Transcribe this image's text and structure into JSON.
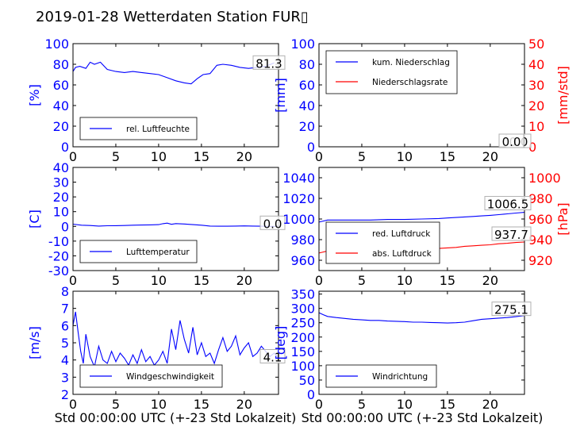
{
  "title": "2019-01-28 Wetterdaten Station FUR▯",
  "colors": {
    "primary": "#0000ff",
    "secondary": "#ff0000",
    "axis": "#000000"
  },
  "xlabel": "Std 00:00:00 UTC (+-23 Std Lokalzeit)",
  "chart_data": [
    {
      "type": "line",
      "id": "humidity",
      "xlim": [
        0,
        24
      ],
      "xticks": [
        0,
        5,
        10,
        15,
        20
      ],
      "ylim": [
        0,
        100
      ],
      "yticks": [
        0,
        20,
        40,
        60,
        80,
        100
      ],
      "ylabel": "[%]",
      "legend": "lower-left",
      "last_value": "81.3",
      "series": [
        {
          "name": "rel. Luftfeuchte",
          "axis": "left",
          "color": "#0000ff",
          "x": [
            0,
            0.3,
            0.8,
            1.5,
            2,
            2.5,
            3.2,
            4,
            5,
            6,
            7,
            8,
            9,
            10,
            11,
            12,
            13,
            13.8,
            14.5,
            15.2,
            16,
            16.8,
            17.5,
            18.5,
            19.5,
            20.5,
            21.5,
            22.5,
            23.5
          ],
          "y": [
            73,
            77,
            78,
            76,
            82,
            80,
            82,
            75,
            73,
            72,
            73,
            72,
            71,
            70,
            67,
            64,
            62,
            61,
            66,
            70,
            71,
            79,
            80,
            79,
            77,
            76,
            77,
            78,
            81.3
          ]
        }
      ]
    },
    {
      "type": "line",
      "id": "precip",
      "xlim": [
        0,
        24
      ],
      "xticks": [
        0,
        5,
        10,
        15,
        20
      ],
      "ylim": [
        0,
        100
      ],
      "yticks": [
        0,
        20,
        40,
        60,
        80,
        100
      ],
      "ylabel": "[mm]",
      "y2lim": [
        0,
        50
      ],
      "y2ticks": [
        0,
        10,
        20,
        30,
        40,
        50
      ],
      "y2label": "[mm/std]",
      "legend": "upper-left",
      "last_value": "0.0",
      "last_value2": "0.0",
      "series": [
        {
          "name": "kum. Niederschlag",
          "axis": "left",
          "color": "#0000ff",
          "x": [
            0,
            24
          ],
          "y": [
            0,
            0
          ]
        },
        {
          "name": "Niederschlagsrate",
          "axis": "right",
          "color": "#ff0000",
          "x": [
            0,
            24
          ],
          "y": [
            0,
            0
          ]
        }
      ]
    },
    {
      "type": "line",
      "id": "temperature",
      "xlim": [
        0,
        24
      ],
      "xticks": [
        0,
        5,
        10,
        15,
        20
      ],
      "ylim": [
        -30,
        40
      ],
      "yticks": [
        -30,
        -20,
        -10,
        0,
        10,
        20,
        30,
        40
      ],
      "ylabel": "[C]",
      "legend": "lower-left",
      "last_value": "0.0",
      "series": [
        {
          "name": "Lufttemperatur",
          "axis": "left",
          "color": "#0000ff",
          "x": [
            0,
            1,
            2,
            3,
            4,
            5,
            6,
            7,
            8,
            9,
            10,
            10.5,
            11,
            11.5,
            12,
            13,
            14,
            15,
            16,
            17,
            18,
            19,
            20,
            21,
            22,
            23,
            24
          ],
          "y": [
            1.5,
            0.8,
            0.6,
            0.2,
            0.4,
            0.5,
            0.6,
            0.8,
            0.9,
            1.0,
            1.2,
            1.8,
            2.2,
            1.4,
            1.9,
            1.6,
            1.2,
            0.8,
            0.2,
            0.1,
            0.1,
            0.2,
            0.3,
            0.2,
            0.1,
            0.0,
            0.0
          ]
        }
      ]
    },
    {
      "type": "line",
      "id": "pressure",
      "xlim": [
        0,
        24
      ],
      "xticks": [
        0,
        5,
        10,
        15,
        20
      ],
      "ylim": [
        950,
        1050
      ],
      "yticks": [
        960,
        980,
        1000,
        1020,
        1040
      ],
      "ylabel": "",
      "y2lim": [
        910,
        1010
      ],
      "y2ticks": [
        920,
        940,
        960,
        980,
        1000
      ],
      "y2label": "[hPa]",
      "legend": "lower-left",
      "last_value": "1006.5",
      "last_value2": "937.7",
      "series": [
        {
          "name": "red. Luftdruck",
          "axis": "left",
          "color": "#0000ff",
          "x": [
            0,
            1,
            2,
            4,
            6,
            8,
            10,
            12,
            14,
            15,
            16,
            17,
            18,
            19,
            20,
            21,
            22,
            23,
            24
          ],
          "y": [
            997,
            999,
            999,
            999,
            999,
            999.5,
            999.5,
            1000,
            1000.5,
            1001,
            1001.5,
            1002,
            1002.5,
            1003,
            1003.5,
            1004.2,
            1005,
            1005.8,
            1006.5
          ]
        },
        {
          "name": "abs. Luftdruck",
          "axis": "right",
          "color": "#ff0000",
          "x": [
            0,
            1,
            2,
            4,
            6,
            8,
            10,
            12,
            14,
            15,
            16,
            17,
            18,
            19,
            20,
            21,
            22,
            23,
            24
          ],
          "y": [
            927,
            929,
            929,
            929.5,
            930,
            930,
            930.5,
            931,
            931.5,
            932,
            932.5,
            933.5,
            934,
            934.5,
            935,
            936,
            936.5,
            937.2,
            937.7
          ]
        }
      ]
    },
    {
      "type": "line",
      "id": "windspeed",
      "xlim": [
        0,
        24
      ],
      "xticks": [
        0,
        5,
        10,
        15,
        20
      ],
      "ylim": [
        2,
        8
      ],
      "yticks": [
        2,
        3,
        4,
        5,
        6,
        7,
        8
      ],
      "ylabel": "[m/s]",
      "legend": "lower-left",
      "last_value": "4.1",
      "series": [
        {
          "name": "Windgeschwindigkeit",
          "axis": "left",
          "color": "#0000ff",
          "x": [
            0,
            0.3,
            0.6,
            0.9,
            1.2,
            1.5,
            2,
            2.5,
            3,
            3.5,
            4,
            4.5,
            5,
            5.5,
            6,
            6.5,
            7,
            7.5,
            8,
            8.5,
            9,
            9.5,
            10,
            10.5,
            11,
            11.5,
            12,
            12.5,
            13,
            13.5,
            14,
            14.5,
            15,
            15.5,
            16,
            16.5,
            17,
            17.5,
            18,
            18.5,
            19,
            19.5,
            20,
            20.5,
            21,
            21.5,
            22,
            22.5,
            23,
            23.5,
            24
          ],
          "y": [
            6.0,
            6.8,
            5.6,
            4.5,
            3.8,
            5.5,
            4.2,
            3.6,
            4.8,
            4.0,
            3.8,
            4.5,
            3.9,
            4.4,
            4.1,
            3.7,
            4.3,
            3.8,
            4.6,
            3.9,
            4.2,
            3.7,
            4.0,
            4.5,
            3.8,
            5.8,
            4.6,
            6.3,
            5.2,
            4.4,
            5.9,
            4.3,
            5.0,
            4.2,
            4.4,
            3.8,
            4.6,
            5.3,
            4.5,
            4.8,
            5.4,
            4.3,
            4.7,
            5.0,
            4.2,
            4.4,
            4.8,
            4.5,
            4.2,
            4.4,
            4.1
          ]
        }
      ]
    },
    {
      "type": "line",
      "id": "winddir",
      "xlim": [
        0,
        24
      ],
      "xticks": [
        0,
        5,
        10,
        15,
        20
      ],
      "ylim": [
        0,
        360
      ],
      "yticks": [
        0,
        50,
        100,
        150,
        200,
        250,
        300,
        350
      ],
      "ylabel": "[deg]",
      "legend": "lower-left",
      "last_value": "275.1",
      "series": [
        {
          "name": "Windrichtung",
          "axis": "left",
          "color": "#0000ff",
          "x": [
            0,
            0.5,
            1,
            2,
            3,
            4,
            5,
            6,
            7,
            8,
            9,
            10,
            11,
            12,
            13,
            14,
            15,
            16,
            17,
            18,
            19,
            20,
            21,
            22,
            23,
            24
          ],
          "y": [
            285,
            278,
            272,
            268,
            265,
            262,
            260,
            258,
            258,
            256,
            255,
            254,
            252,
            252,
            251,
            250,
            249,
            250,
            252,
            257,
            262,
            264,
            266,
            268,
            271,
            275.1
          ]
        }
      ]
    }
  ]
}
